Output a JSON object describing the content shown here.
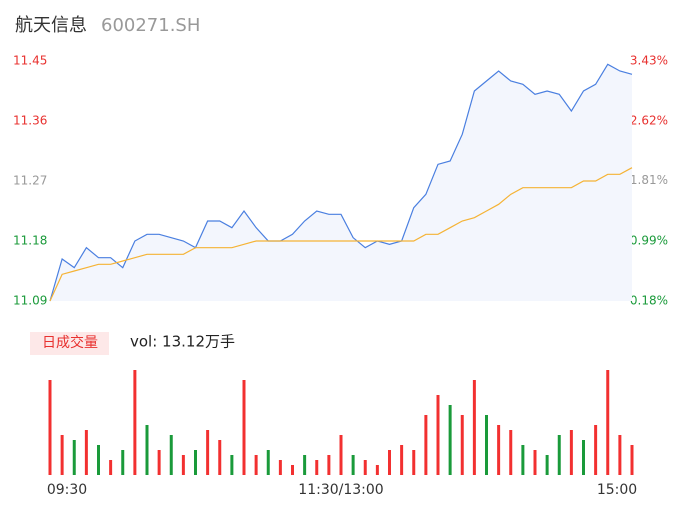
{
  "chart_data": {
    "type": "intraday",
    "title": "航天信息",
    "subtitle": "600271.SH",
    "categories": [
      "09:30",
      null,
      null,
      null,
      null,
      null,
      null,
      null,
      null,
      null,
      null,
      null,
      null,
      null,
      null,
      null,
      null,
      null,
      null,
      null,
      null,
      null,
      null,
      null,
      "11:30/13:00",
      null,
      null,
      null,
      null,
      null,
      null,
      null,
      null,
      null,
      null,
      null,
      null,
      null,
      null,
      null,
      null,
      null,
      null,
      null,
      null,
      null,
      null,
      null,
      "15:00"
    ],
    "series": [
      {
        "name": "price",
        "color": "#4a7fe0",
        "values": [
          11.09,
          11.153,
          11.14,
          11.17,
          11.155,
          11.155,
          11.14,
          11.18,
          11.19,
          11.19,
          11.185,
          11.18,
          11.17,
          11.21,
          11.21,
          11.2,
          11.225,
          11.2,
          11.18,
          11.18,
          11.19,
          11.21,
          11.225,
          11.22,
          11.22,
          11.185,
          11.17,
          11.18,
          11.175,
          11.18,
          11.23,
          11.25,
          11.295,
          11.3,
          11.34,
          11.405,
          11.42,
          11.435,
          11.42,
          11.415,
          11.4,
          11.405,
          11.4,
          11.375,
          11.405,
          11.415,
          11.445,
          11.435,
          11.43
        ]
      },
      {
        "name": "average",
        "color": "#f5b335",
        "values": [
          11.09,
          11.13,
          11.135,
          11.14,
          11.145,
          11.145,
          11.15,
          11.155,
          11.16,
          11.16,
          11.16,
          11.16,
          11.17,
          11.17,
          11.17,
          11.17,
          11.175,
          11.18,
          11.18,
          11.18,
          11.18,
          11.18,
          11.18,
          11.18,
          11.18,
          11.18,
          11.18,
          11.18,
          11.18,
          11.18,
          11.18,
          11.19,
          11.19,
          11.2,
          11.21,
          11.215,
          11.225,
          11.235,
          11.25,
          11.26,
          11.26,
          11.26,
          11.26,
          11.26,
          11.27,
          11.27,
          11.28,
          11.28,
          11.29
        ]
      }
    ],
    "ylim": [
      11.09,
      11.45
    ],
    "yticks": [
      11.45,
      11.36,
      11.27,
      11.18,
      11.09
    ],
    "ytick_colors": [
      "#e8312f",
      "#e8312f",
      "#999999",
      "#1a9a3a",
      "#1a9a3a"
    ],
    "y2lim": [
      3.43,
      0.18
    ],
    "y2ticks": [
      {
        "value": 3.43,
        "label": "3.43%"
      },
      {
        "value": 2.62,
        "label": "2.62%"
      },
      {
        "value": 1.81,
        "label": "1.81%"
      },
      {
        "value": 0.99,
        "label": "0.99%"
      },
      {
        "value": 0.18,
        "label": "0.18%"
      }
    ],
    "volume_badge": "日成交量",
    "volume_label": "vol: 13.12万手",
    "volume": {
      "values": [
        95,
        40,
        35,
        45,
        30,
        15,
        25,
        105,
        50,
        25,
        40,
        20,
        25,
        45,
        35,
        20,
        95,
        20,
        25,
        15,
        10,
        20,
        15,
        20,
        40,
        20,
        15,
        10,
        25,
        30,
        25,
        60,
        80,
        70,
        60,
        95,
        60,
        50,
        45,
        30,
        25,
        20,
        40,
        45,
        35,
        50,
        105,
        40,
        30
      ],
      "colors": [
        "#f23030",
        "#f23030",
        "#1a9a3a",
        "#f23030",
        "#1a9a3a",
        "#f23030",
        "#1a9a3a",
        "#f23030",
        "#1a9a3a",
        "#f23030",
        "#1a9a3a",
        "#f23030",
        "#1a9a3a",
        "#f23030",
        "#f23030",
        "#1a9a3a",
        "#f23030",
        "#f23030",
        "#1a9a3a",
        "#f23030",
        "#f23030",
        "#1a9a3a",
        "#f23030",
        "#f23030",
        "#f23030",
        "#1a9a3a",
        "#f23030",
        "#f23030",
        "#f23030",
        "#f23030",
        "#f23030",
        "#f23030",
        "#f23030",
        "#1a9a3a",
        "#f23030",
        "#f23030",
        "#1a9a3a",
        "#f23030",
        "#f23030",
        "#1a9a3a",
        "#f23030",
        "#1a9a3a",
        "#1a9a3a",
        "#f23030",
        "#1a9a3a",
        "#f23030",
        "#f23030",
        "#f23030",
        "#f23030"
      ]
    }
  }
}
